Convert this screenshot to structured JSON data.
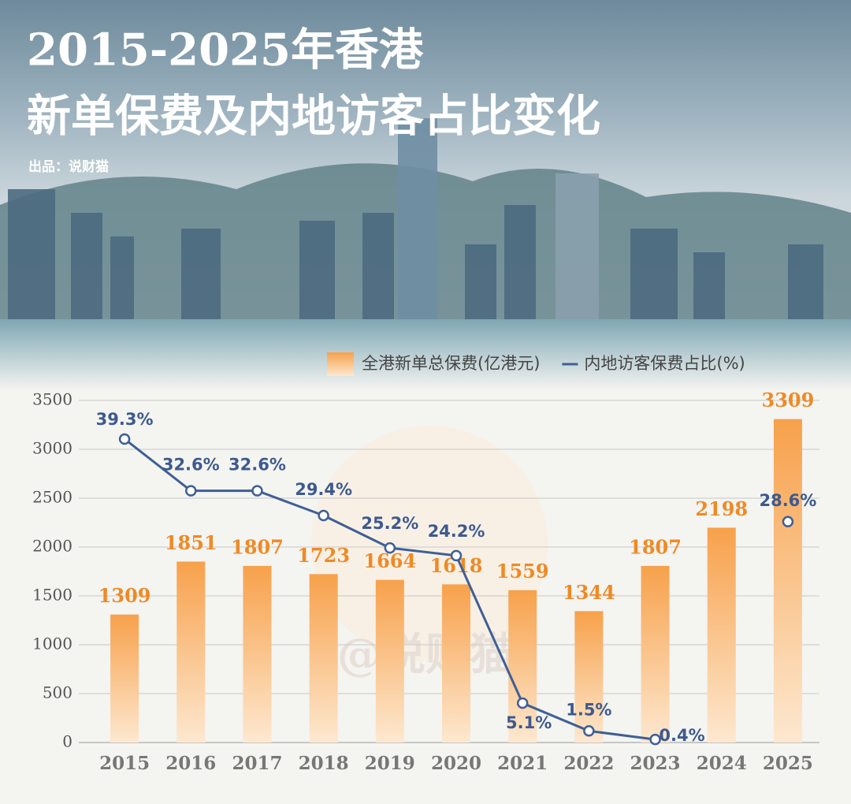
{
  "chart_data": {
    "type": "bar",
    "title": [
      "2015-2025年香港",
      "新单保费及内地访客占比变化"
    ],
    "credit": "出品：说财猫",
    "watermark": "@说财猫",
    "categories": [
      "2015",
      "2016",
      "2017",
      "2018",
      "2019",
      "2020",
      "2021",
      "2022",
      "2023",
      "2024",
      "2025"
    ],
    "series": [
      {
        "name": "全港新单总保费(亿港元)",
        "type": "bar",
        "color": "#f7a14b",
        "values": [
          1309,
          1851,
          1807,
          1723,
          1664,
          1618,
          1559,
          1344,
          1807,
          2198,
          3309
        ]
      },
      {
        "name": "内地访客保费占比(%)",
        "type": "line",
        "axis": "y2",
        "color": "#3f5f95",
        "values": [
          39.3,
          32.6,
          32.6,
          29.4,
          25.2,
          24.2,
          5.1,
          1.5,
          0.4,
          null,
          28.6
        ],
        "value_labels": [
          "39.3%",
          "32.6%",
          "32.6%",
          "29.4%",
          "25.2%",
          "24.2%",
          "5.1%",
          "1.5%",
          "0.4%",
          null,
          "28.6%"
        ]
      }
    ],
    "ylim": [
      0,
      3500
    ],
    "yticks": [
      0,
      500,
      1000,
      1500,
      2000,
      2500,
      3000,
      3500
    ],
    "y2lim": [
      0,
      44.3
    ],
    "grid": true,
    "legend": "top-right"
  }
}
